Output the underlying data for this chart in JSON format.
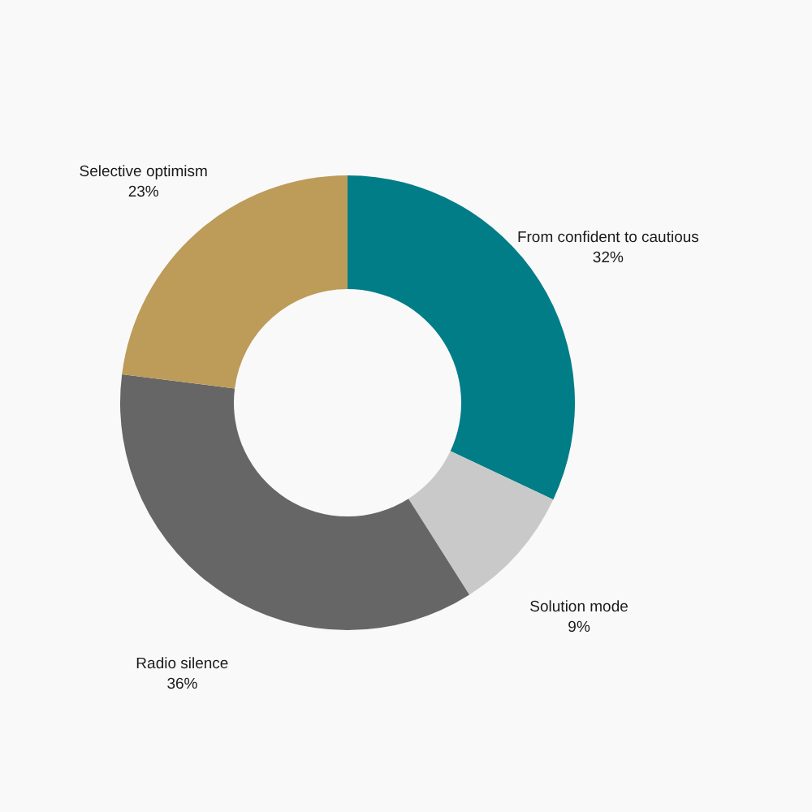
{
  "chart_data": {
    "type": "donut",
    "categories": [
      "From confident to cautious",
      "Solution mode",
      "Radio silence",
      "Selective optimism"
    ],
    "values": [
      32,
      9,
      36,
      23
    ],
    "colors": [
      "#007d87",
      "#c9c9c9",
      "#666666",
      "#bd9b58"
    ],
    "value_labels": [
      "32%",
      "9%",
      "36%",
      "23%"
    ]
  }
}
